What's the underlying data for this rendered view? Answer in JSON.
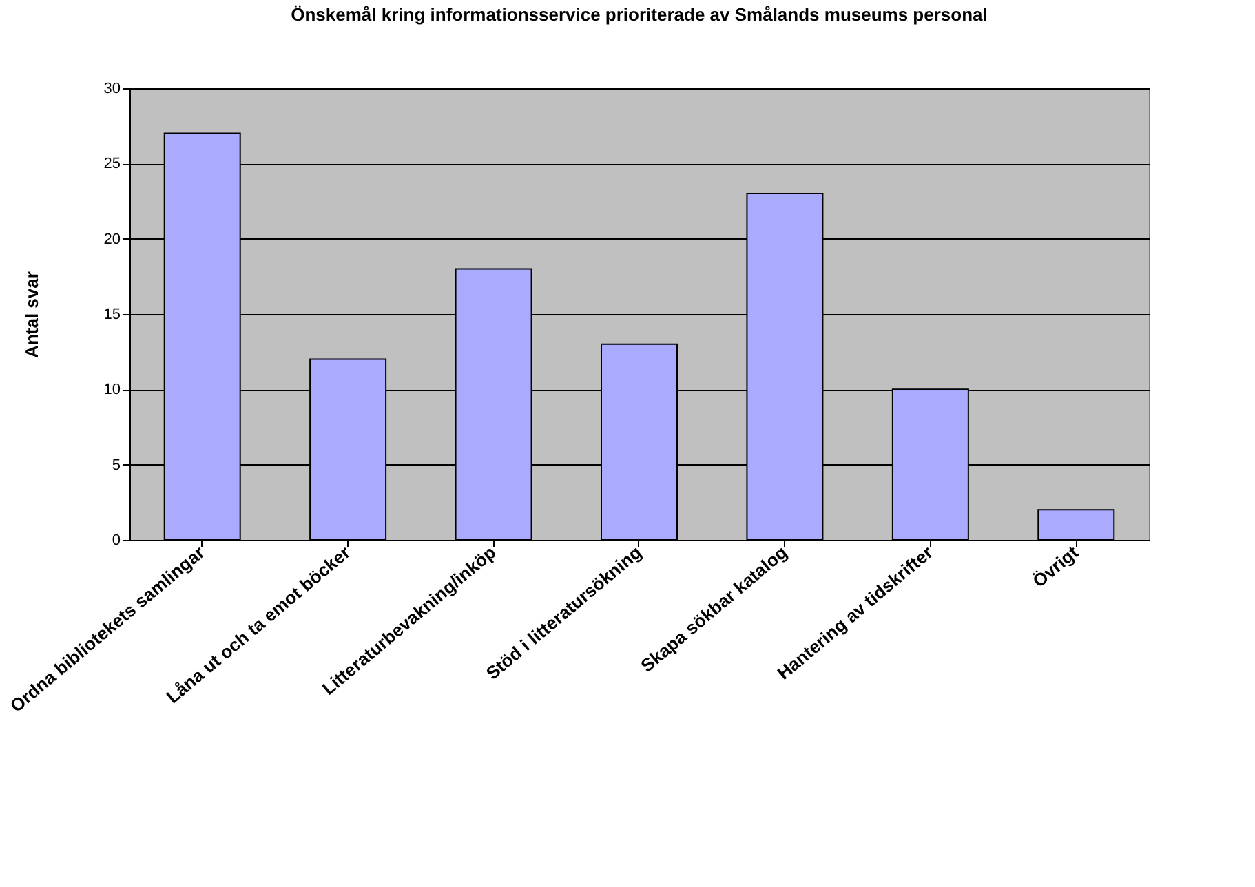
{
  "chart_data": {
    "type": "bar",
    "title": "Önskemål kring informationsservice prioriterade av Smålands museums personal",
    "ylabel": "Antal svar",
    "categories": [
      "Ordna bibliotekets samlingar",
      "Låna ut och ta emot böcker",
      "Litteraturbevakning/inköp",
      "Stöd i litteratursökning",
      "Skapa sökbar katalog",
      "Hantering av tidskrifter",
      "Övrigt"
    ],
    "values": [
      27,
      12,
      18,
      13,
      23,
      10,
      2
    ],
    "color": "#aaaaff",
    "ylim": [
      0,
      30
    ],
    "yticks": [
      0,
      5,
      10,
      15,
      20,
      25,
      30
    ],
    "grid": "y"
  }
}
